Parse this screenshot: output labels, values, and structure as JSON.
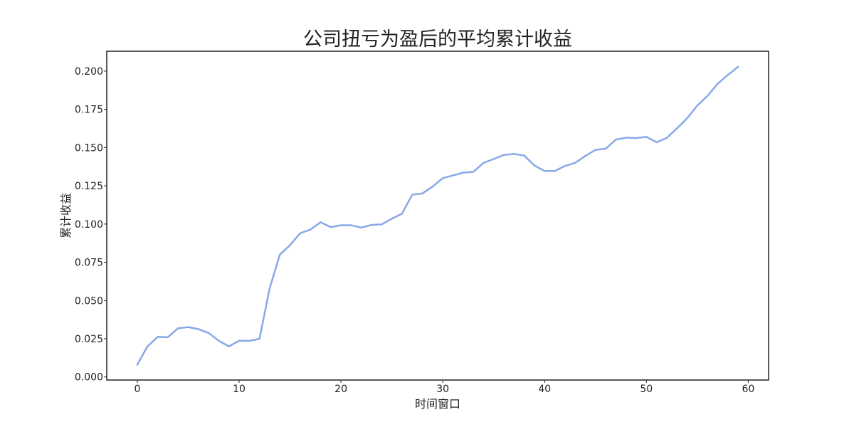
{
  "chart_data": {
    "type": "line",
    "title": "公司扭亏为盈后的平均累计收益",
    "xlabel": "时间窗口",
    "ylabel": "累计收益",
    "xlim": [
      -3,
      62
    ],
    "ylim": [
      -0.002,
      0.213
    ],
    "x_ticks": [
      0,
      10,
      20,
      30,
      40,
      50,
      60
    ],
    "x_tick_labels": [
      "0",
      "10",
      "20",
      "30",
      "40",
      "50",
      "60"
    ],
    "y_ticks": [
      0.0,
      0.025,
      0.05,
      0.075,
      0.1,
      0.125,
      0.15,
      0.175,
      0.2
    ],
    "y_tick_labels": [
      "0.000",
      "0.025",
      "0.050",
      "0.075",
      "0.100",
      "0.125",
      "0.150",
      "0.175",
      "0.200"
    ],
    "grid": false,
    "series": [
      {
        "color": "#87a9e8",
        "x": [
          0,
          1,
          2,
          3,
          4,
          5,
          6,
          7,
          8,
          9,
          10,
          11,
          12,
          13,
          14,
          15,
          16,
          17,
          18,
          19,
          20,
          21,
          22,
          23,
          24,
          25,
          26,
          27,
          28,
          29,
          30,
          31,
          32,
          33,
          34,
          35,
          36,
          37,
          38,
          39,
          40,
          41,
          42,
          43,
          44,
          45,
          46,
          47,
          48,
          49,
          50,
          51,
          52,
          53,
          54,
          55,
          56,
          57,
          58,
          59
        ],
        "values": [
          0.008,
          0.02,
          0.0262,
          0.026,
          0.0318,
          0.0326,
          0.0313,
          0.0288,
          0.0237,
          0.02,
          0.0237,
          0.0236,
          0.025,
          0.058,
          0.08,
          0.0862,
          0.094,
          0.0964,
          0.1012,
          0.098,
          0.0992,
          0.0992,
          0.0977,
          0.0994,
          0.0998,
          0.1035,
          0.1068,
          0.1192,
          0.12,
          0.1245,
          0.13,
          0.1318,
          0.1336,
          0.1341,
          0.14,
          0.1425,
          0.1452,
          0.1458,
          0.1448,
          0.1383,
          0.1347,
          0.1347,
          0.138,
          0.14,
          0.1445,
          0.1485,
          0.1493,
          0.1552,
          0.1565,
          0.1562,
          0.157,
          0.1535,
          0.1563,
          0.1625,
          0.1692,
          0.1775,
          0.1838,
          0.1918,
          0.1975,
          0.2028
        ]
      }
    ]
  }
}
